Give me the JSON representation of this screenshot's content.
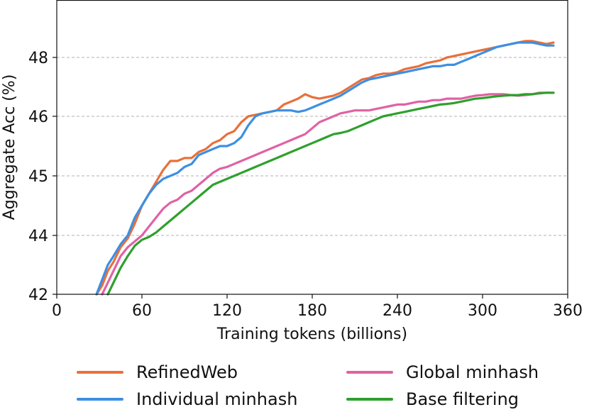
{
  "chart_data": {
    "type": "line",
    "xlabel": "Training tokens (billions)",
    "ylabel": "Aggregate Acc (%)",
    "xlim": [
      0,
      360
    ],
    "ylim": [
      42,
      49
    ],
    "x_ticks": [
      0,
      60,
      120,
      180,
      240,
      300,
      360
    ],
    "y_ticks": [
      42,
      44,
      45,
      46,
      48
    ],
    "y_tick_labels": [
      "42",
      "44",
      "45",
      "46",
      "48"
    ],
    "y_scale_note": "tick labels are unevenly spaced as printed",
    "grid": "horizontal dashed",
    "legend_position": "below",
    "series": [
      {
        "name": "RefinedWeb",
        "color": "#e8703a",
        "x": [
          28,
          32,
          36,
          40,
          45,
          50,
          55,
          60,
          65,
          70,
          75,
          80,
          85,
          90,
          95,
          100,
          105,
          110,
          115,
          120,
          125,
          130,
          135,
          140,
          145,
          150,
          155,
          160,
          165,
          170,
          175,
          180,
          185,
          190,
          195,
          200,
          205,
          210,
          215,
          220,
          225,
          230,
          235,
          240,
          245,
          250,
          255,
          260,
          265,
          270,
          275,
          280,
          285,
          290,
          295,
          300,
          305,
          310,
          315,
          320,
          325,
          330,
          335,
          340,
          345,
          350
        ],
        "y": [
          42.0,
          42.3,
          42.8,
          43.1,
          43.6,
          43.9,
          44.2,
          44.5,
          44.7,
          44.9,
          45.1,
          45.25,
          45.25,
          45.3,
          45.3,
          45.4,
          45.45,
          45.55,
          45.6,
          45.7,
          45.75,
          45.9,
          46.0,
          46.05,
          46.1,
          46.15,
          46.2,
          46.4,
          46.5,
          46.6,
          46.75,
          46.65,
          46.6,
          46.65,
          46.7,
          46.8,
          46.95,
          47.1,
          47.25,
          47.3,
          47.4,
          47.45,
          47.45,
          47.5,
          47.6,
          47.65,
          47.7,
          47.8,
          47.85,
          47.9,
          48.0,
          48.05,
          48.1,
          48.15,
          48.2,
          48.25,
          48.3,
          48.35,
          48.4,
          48.45,
          48.5,
          48.55,
          48.55,
          48.5,
          48.45,
          48.5
        ]
      },
      {
        "name": "Individual minhash",
        "color": "#3d8fe3",
        "x": [
          28,
          32,
          36,
          40,
          45,
          50,
          55,
          60,
          65,
          70,
          75,
          80,
          85,
          90,
          95,
          100,
          105,
          110,
          115,
          120,
          125,
          130,
          135,
          140,
          145,
          150,
          155,
          160,
          165,
          170,
          175,
          180,
          185,
          190,
          195,
          200,
          205,
          210,
          215,
          220,
          225,
          230,
          235,
          240,
          245,
          250,
          255,
          260,
          265,
          270,
          275,
          280,
          285,
          290,
          295,
          300,
          305,
          310,
          315,
          320,
          325,
          330,
          335,
          340,
          345,
          350
        ],
        "y": [
          42.0,
          42.5,
          43.0,
          43.3,
          43.7,
          44.0,
          44.3,
          44.5,
          44.7,
          44.85,
          44.95,
          45.0,
          45.05,
          45.15,
          45.2,
          45.35,
          45.4,
          45.45,
          45.5,
          45.5,
          45.55,
          45.65,
          45.85,
          46.0,
          46.1,
          46.15,
          46.2,
          46.2,
          46.2,
          46.15,
          46.2,
          46.3,
          46.4,
          46.5,
          46.6,
          46.7,
          46.85,
          47.0,
          47.15,
          47.25,
          47.3,
          47.35,
          47.4,
          47.45,
          47.5,
          47.55,
          47.6,
          47.65,
          47.7,
          47.7,
          47.75,
          47.75,
          47.85,
          47.95,
          48.05,
          48.15,
          48.25,
          48.35,
          48.4,
          48.45,
          48.5,
          48.5,
          48.5,
          48.45,
          48.4,
          48.4
        ]
      },
      {
        "name": "Global minhash",
        "color": "#e062a4",
        "x": [
          32,
          36,
          40,
          45,
          50,
          55,
          60,
          65,
          70,
          75,
          80,
          85,
          90,
          95,
          100,
          105,
          110,
          115,
          120,
          125,
          130,
          135,
          140,
          145,
          150,
          155,
          160,
          165,
          170,
          175,
          180,
          185,
          190,
          195,
          200,
          205,
          210,
          215,
          220,
          225,
          230,
          235,
          240,
          245,
          250,
          255,
          260,
          265,
          270,
          275,
          280,
          285,
          290,
          295,
          300,
          305,
          310,
          315,
          320,
          325,
          330,
          335,
          340,
          345,
          350
        ],
        "y": [
          42.0,
          42.4,
          42.8,
          43.3,
          43.6,
          43.8,
          44.0,
          44.15,
          44.3,
          44.45,
          44.55,
          44.6,
          44.7,
          44.75,
          44.85,
          44.95,
          45.05,
          45.12,
          45.15,
          45.2,
          45.25,
          45.3,
          45.35,
          45.4,
          45.45,
          45.5,
          45.55,
          45.6,
          45.65,
          45.7,
          45.8,
          45.9,
          45.95,
          46.0,
          46.1,
          46.15,
          46.2,
          46.2,
          46.2,
          46.25,
          46.3,
          46.35,
          46.4,
          46.4,
          46.45,
          46.5,
          46.5,
          46.55,
          46.55,
          46.6,
          46.6,
          46.6,
          46.65,
          46.7,
          46.72,
          46.75,
          46.75,
          46.75,
          46.72,
          46.7,
          46.72,
          46.75,
          46.8,
          46.8,
          46.8
        ]
      },
      {
        "name": "Base filtering",
        "color": "#2ea02c",
        "x": [
          36,
          40,
          45,
          50,
          55,
          60,
          65,
          70,
          75,
          80,
          85,
          90,
          95,
          100,
          105,
          110,
          115,
          120,
          125,
          130,
          135,
          140,
          145,
          150,
          155,
          160,
          165,
          170,
          175,
          180,
          185,
          190,
          195,
          200,
          205,
          210,
          215,
          220,
          225,
          230,
          235,
          240,
          245,
          250,
          255,
          260,
          265,
          270,
          275,
          280,
          285,
          290,
          295,
          300,
          305,
          310,
          315,
          320,
          325,
          330,
          335,
          340,
          345,
          350
        ],
        "y": [
          42.0,
          42.4,
          42.9,
          43.3,
          43.65,
          43.85,
          43.95,
          44.05,
          44.15,
          44.25,
          44.35,
          44.45,
          44.55,
          44.65,
          44.75,
          44.85,
          44.9,
          44.95,
          45.0,
          45.05,
          45.1,
          45.15,
          45.2,
          45.25,
          45.3,
          45.35,
          45.4,
          45.45,
          45.5,
          45.55,
          45.6,
          45.65,
          45.7,
          45.72,
          45.75,
          45.8,
          45.85,
          45.9,
          45.95,
          46.0,
          46.05,
          46.1,
          46.15,
          46.2,
          46.25,
          46.3,
          46.35,
          46.4,
          46.42,
          46.45,
          46.5,
          46.55,
          46.6,
          46.62,
          46.65,
          46.68,
          46.7,
          46.72,
          46.72,
          46.75,
          46.75,
          46.78,
          46.8,
          46.8
        ]
      }
    ],
    "legend": [
      {
        "label": "RefinedWeb",
        "color": "#e8703a"
      },
      {
        "label": "Global minhash",
        "color": "#e062a4"
      },
      {
        "label": "Individual minhash",
        "color": "#3d8fe3"
      },
      {
        "label": "Base filtering",
        "color": "#2ea02c"
      }
    ]
  }
}
